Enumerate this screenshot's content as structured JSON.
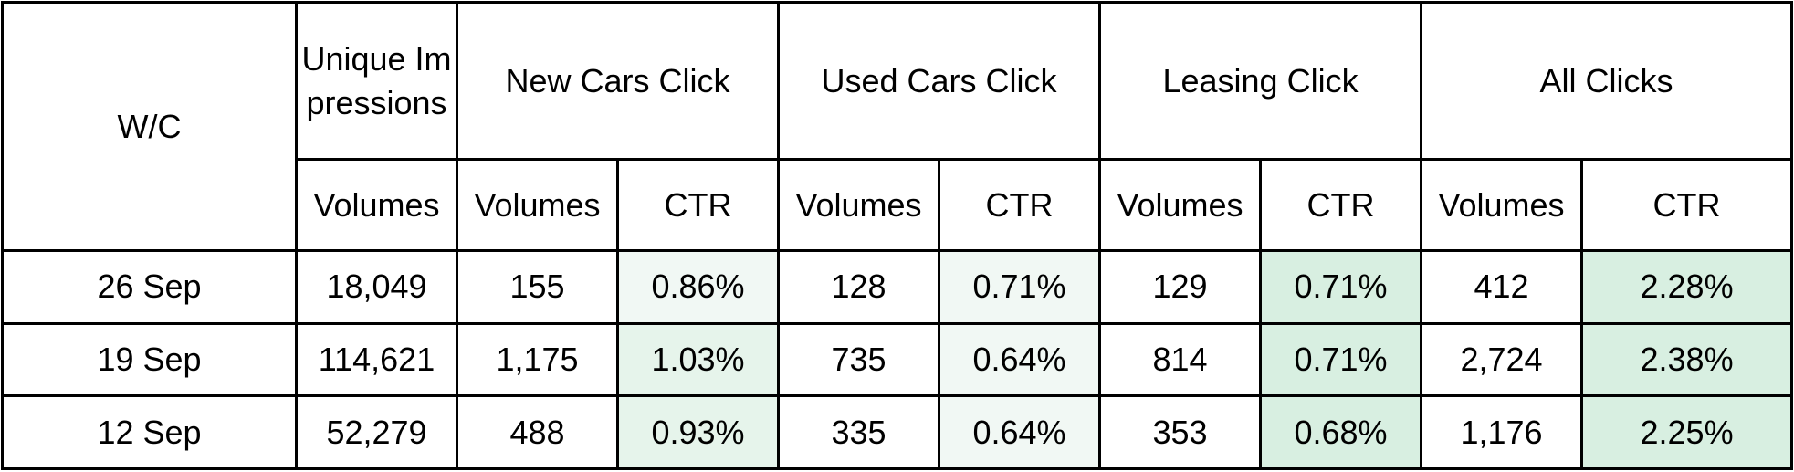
{
  "table": {
    "header_top": {
      "wc": "W/C",
      "unique_impressions": "Unique Impressions",
      "new_cars_click": "New Cars Click",
      "used_cars_click": "Used Cars Click",
      "leasing_click": "Leasing Click",
      "all_clicks": "All Clicks"
    },
    "header_sub": {
      "volumes": "Volumes",
      "ctr": "CTR"
    },
    "rows": [
      {
        "wc": "26 Sep",
        "impressions": "18,049",
        "new_vol": "155",
        "new_ctr": "0.86%",
        "used_vol": "128",
        "used_ctr": "0.71%",
        "leasing_vol": "129",
        "leasing_ctr": "0.71%",
        "all_vol": "412",
        "all_ctr": "2.28%"
      },
      {
        "wc": "19 Sep",
        "impressions": "114,621",
        "new_vol": "1,175",
        "new_ctr": "1.03%",
        "used_vol": "735",
        "used_ctr": "0.64%",
        "leasing_vol": "814",
        "leasing_ctr": "0.71%",
        "all_vol": "2,724",
        "all_ctr": "2.38%"
      },
      {
        "wc": "12 Sep",
        "impressions": "52,279",
        "new_vol": "488",
        "new_ctr": "0.93%",
        "used_vol": "335",
        "used_ctr": "0.64%",
        "leasing_vol": "353",
        "leasing_ctr": "0.68%",
        "all_vol": "1,176",
        "all_ctr": "2.25%"
      }
    ],
    "colors": {
      "ctr_shade_light": "#f1f8f4",
      "ctr_shade_mid": "#e6f4eb",
      "ctr_shade_dark": "#d8efe1",
      "border": "#000000"
    }
  }
}
